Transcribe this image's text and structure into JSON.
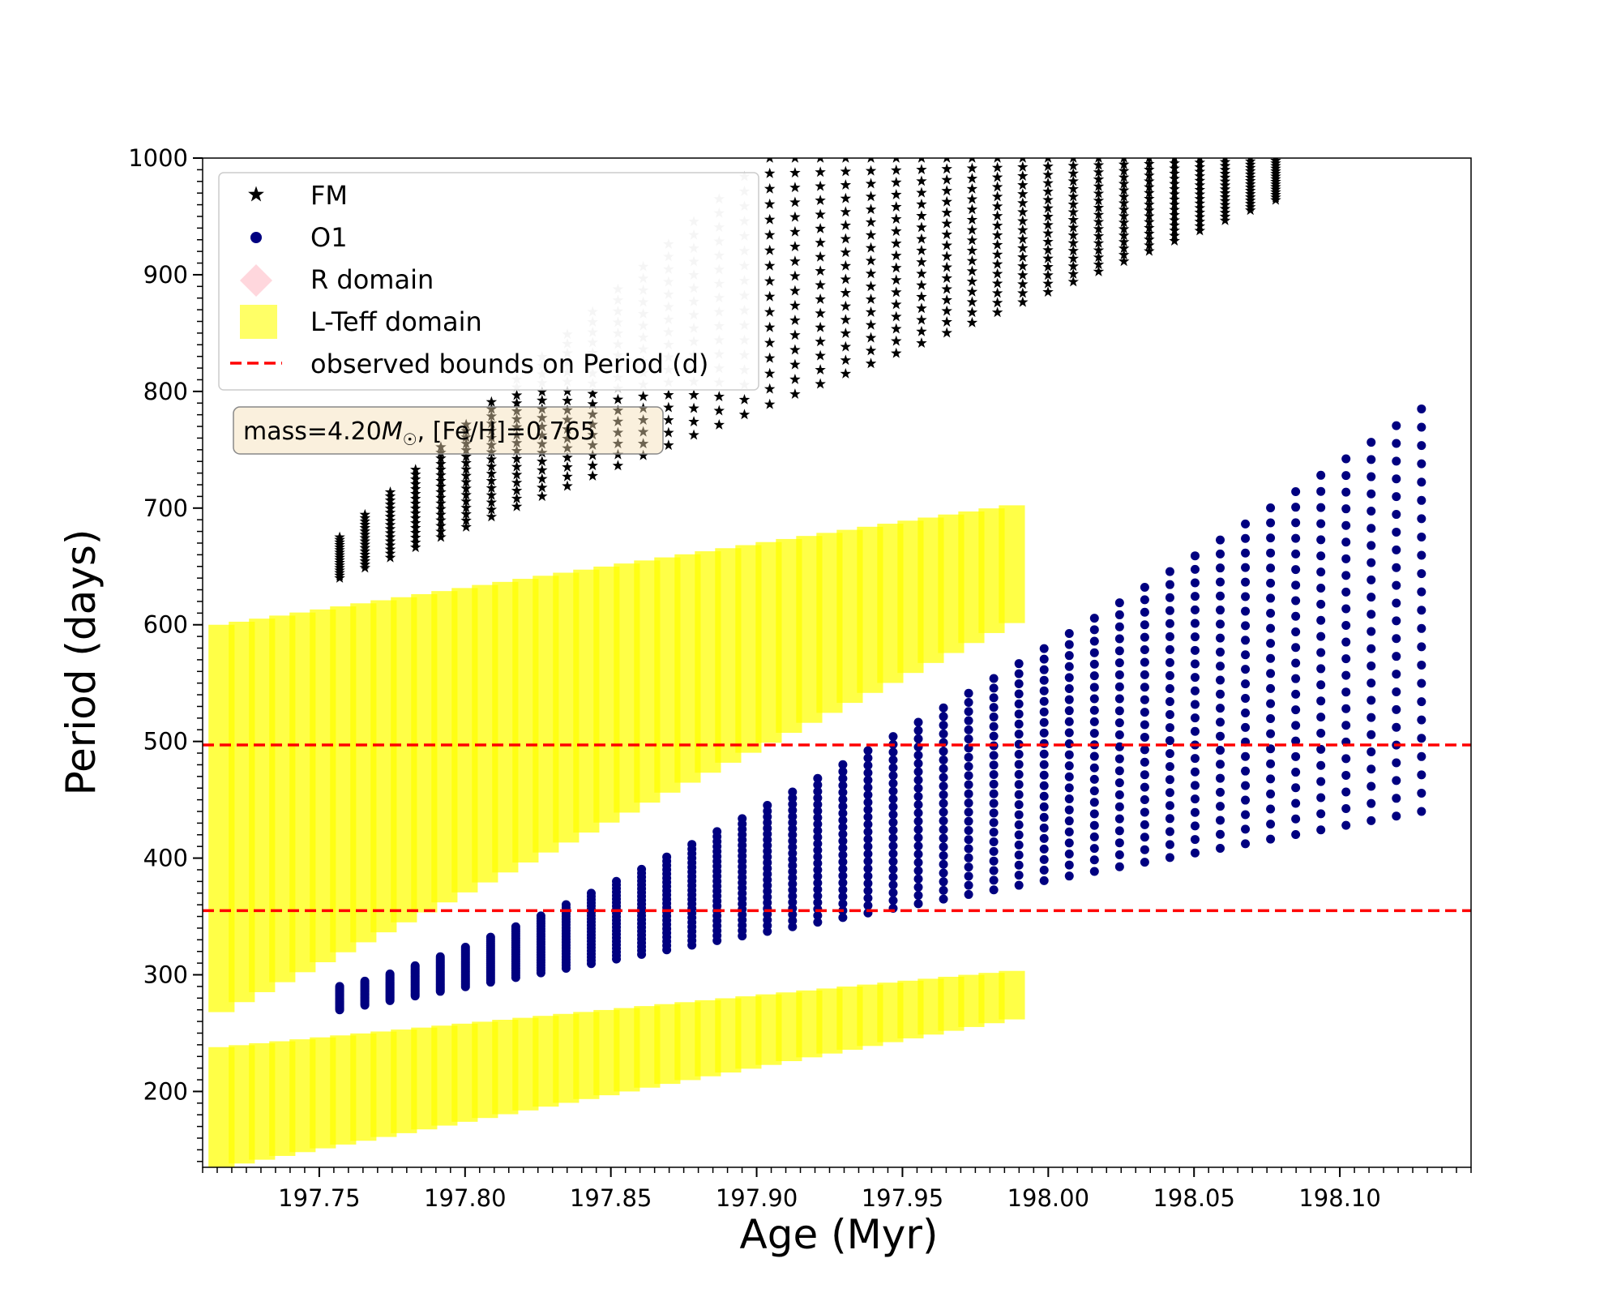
{
  "chart_data": {
    "type": "scatter",
    "xlabel": "Age (Myr)",
    "ylabel": "Period (days)",
    "xlim": [
      197.71,
      198.145
    ],
    "ylim": [
      135,
      1000
    ],
    "xticks": [
      197.75,
      197.8,
      197.85,
      197.9,
      197.95,
      198.0,
      198.05,
      198.1
    ],
    "xtick_labels": [
      "197.75",
      "197.80",
      "197.85",
      "197.90",
      "197.95",
      "198.00",
      "198.05",
      "198.10"
    ],
    "yticks": [
      200,
      300,
      400,
      500,
      600,
      700,
      800,
      900,
      1000
    ],
    "ytick_labels": [
      "200",
      "300",
      "400",
      "500",
      "600",
      "700",
      "800",
      "900",
      "1000"
    ],
    "grid": false,
    "legend_position": "top-left",
    "annotation": {
      "prefix": "mass=4.20",
      "unit_symbol": "M",
      "unit_subscript": "☉",
      "suffix": ", [Fe/H]=0.765"
    },
    "series": [
      {
        "name": "FM",
        "marker": "star",
        "color": "#000000",
        "band_start_age": 197.757,
        "band_end_age": 198.078,
        "band_count": 38,
        "band_low_start": 640,
        "band_low_end": 1000,
        "band_high_start": 675,
        "band_high_end": 1000
      },
      {
        "name": "O1",
        "marker": "circle",
        "color": "#000080",
        "band_start_age": 197.757,
        "band_end_age": 198.128,
        "band_count": 44,
        "band_low_start": 270,
        "band_low_end": 440,
        "band_high_start": 290,
        "band_high_end": 785
      },
      {
        "name": "R domain",
        "marker": "diamond",
        "color": "#ffb6c1"
      },
      {
        "name": "L-Teff domain",
        "marker": "square",
        "color": "#ffff00",
        "regions": [
          {
            "age_start": 197.712,
            "age_end": 197.99,
            "upper_start": 600,
            "upper_end": 705,
            "lower_start": 268,
            "lower_end": 610
          },
          {
            "age_start": 197.712,
            "age_end": 197.99,
            "upper_start": 238,
            "upper_end": 305,
            "lower_start": 135,
            "lower_end": 265
          }
        ]
      },
      {
        "name": "observed bounds on Period (d)",
        "marker": "dashed-line",
        "color": "#ff0000",
        "values": [
          355,
          497
        ]
      }
    ]
  }
}
